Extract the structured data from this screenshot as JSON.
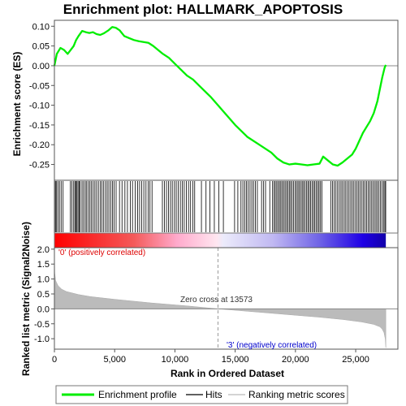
{
  "title": "Enrichment plot: HALLMARK_APOPTOSIS",
  "es_panel": {
    "ylabel": "Enrichment score (ES)",
    "ylim": [
      -0.29,
      0.115
    ],
    "ticks": [
      0.1,
      0.05,
      0.0,
      -0.05,
      -0.1,
      -0.15,
      -0.2,
      -0.25
    ],
    "tick_labels": [
      "0.10",
      "0.05",
      "0.00",
      "-0.05",
      "-0.10",
      "-0.15",
      "-0.20",
      "-0.25"
    ]
  },
  "metric_panel": {
    "ylabel": "Ranked list metric (Signal2Noise)",
    "ylim": [
      -1.35,
      2.05
    ],
    "ticks": [
      2.0,
      1.5,
      1.0,
      0.5,
      0.0,
      -0.5,
      -1.0
    ],
    "tick_labels": [
      "2.0",
      "1.5",
      "1.0",
      "0.5",
      "0.0",
      "-0.5",
      "-1.0"
    ],
    "pos_label": "'0' (positively correlated)",
    "neg_label": "'3' (negatively correlated)",
    "zero_cross_label": "Zero cross at 13573",
    "zero_cross": 13573
  },
  "x_axis": {
    "xlabel": "Rank in Ordered Dataset",
    "xlim": [
      0,
      28500
    ],
    "ticks": [
      0,
      5000,
      10000,
      15000,
      20000,
      25000
    ],
    "tick_labels": [
      "0",
      "5,000",
      "10,000",
      "15,000",
      "20,000",
      "25,000"
    ]
  },
  "legend": {
    "items": [
      {
        "label": "Enrichment profile",
        "color": "#00ee00"
      },
      {
        "label": "Hits",
        "color": "#000000"
      },
      {
        "label": "Ranking metric scores",
        "color": "#bbbbbb"
      }
    ]
  },
  "chart_data": {
    "type": "line",
    "n_genes": 27500,
    "series": [
      {
        "name": "Enrichment profile",
        "color": "#00ee00",
        "x": [
          0,
          200,
          500,
          800,
          1100,
          1400,
          1600,
          1800,
          2000,
          2300,
          2600,
          2900,
          3200,
          3500,
          3800,
          4100,
          4500,
          4800,
          5100,
          5400,
          5800,
          6200,
          6600,
          7000,
          7400,
          7800,
          8200,
          8600,
          9000,
          9500,
          10000,
          10500,
          11000,
          11500,
          12000,
          13000,
          14000,
          15000,
          16000,
          17000,
          18000,
          18500,
          19000,
          19500,
          20000,
          20500,
          21000,
          21500,
          22000,
          22300,
          22700,
          23100,
          23500,
          23900,
          24300,
          24700,
          25000,
          25300,
          25600,
          25900,
          26200,
          26500,
          26800,
          27000,
          27200,
          27400,
          27500
        ],
        "values": [
          0.0,
          0.03,
          0.045,
          0.04,
          0.03,
          0.042,
          0.05,
          0.065,
          0.075,
          0.088,
          0.085,
          0.083,
          0.085,
          0.08,
          0.078,
          0.082,
          0.09,
          0.098,
          0.096,
          0.09,
          0.075,
          0.07,
          0.065,
          0.062,
          0.06,
          0.058,
          0.05,
          0.04,
          0.03,
          0.02,
          0.005,
          -0.01,
          -0.025,
          -0.035,
          -0.05,
          -0.08,
          -0.115,
          -0.15,
          -0.18,
          -0.2,
          -0.22,
          -0.235,
          -0.245,
          -0.25,
          -0.248,
          -0.25,
          -0.252,
          -0.25,
          -0.248,
          -0.23,
          -0.24,
          -0.25,
          -0.253,
          -0.245,
          -0.235,
          -0.225,
          -0.21,
          -0.19,
          -0.17,
          -0.155,
          -0.14,
          -0.12,
          -0.09,
          -0.06,
          -0.03,
          -0.005,
          0.002
        ]
      },
      {
        "name": "Ranking metric scores",
        "color": "#bbbbbb",
        "x": [
          0,
          30,
          100,
          300,
          600,
          1000,
          2000,
          3000,
          5000,
          8000,
          11000,
          13573,
          16000,
          19000,
          22000,
          24000,
          25500,
          26500,
          27000,
          27200,
          27350,
          27450,
          27500
        ],
        "values": [
          2.0,
          1.2,
          0.95,
          0.78,
          0.66,
          0.58,
          0.48,
          0.41,
          0.32,
          0.2,
          0.1,
          0.0,
          -0.08,
          -0.18,
          -0.28,
          -0.36,
          -0.44,
          -0.52,
          -0.6,
          -0.68,
          -0.8,
          -1.0,
          -1.3
        ]
      }
    ],
    "hits": [
      20,
      90,
      180,
      290,
      420,
      560,
      720,
      1330,
      1460,
      1600,
      1700,
      1790,
      1870,
      1960,
      2050,
      2140,
      2290,
      2420,
      2560,
      2680,
      2820,
      2950,
      3080,
      3220,
      3360,
      3500,
      3650,
      3800,
      3940,
      4090,
      4240,
      4380,
      4520,
      4670,
      4820,
      4950,
      5120,
      5400,
      5610,
      5850,
      6060,
      6300,
      6480,
      6700,
      6900,
      7070,
      7250,
      7420,
      7600,
      7790,
      7930,
      8100,
      8960,
      9130,
      9300,
      9460,
      9630,
      9780,
      9960,
      10110,
      10280,
      10450,
      10610,
      10770,
      10950,
      11130,
      11300,
      11480,
      11640,
      12200,
      12580,
      12900,
      13270,
      13650,
      14020,
      14950,
      15220,
      15480,
      15640,
      15790,
      15930,
      16080,
      16230,
      16380,
      16520,
      16680,
      16840,
      17190,
      17360,
      17520,
      17870,
      18100,
      18220,
      18330,
      18450,
      18560,
      18680,
      18790,
      18910,
      19020,
      19140,
      19260,
      19370,
      19490,
      19600,
      19720,
      19850,
      19970,
      20090,
      20210,
      20320,
      20440,
      20560,
      20670,
      20790,
      20910,
      21030,
      21140,
      21260,
      21380,
      21500,
      21610,
      21730,
      21850,
      21960,
      22080,
      22190,
      22930,
      23080,
      23220,
      23360,
      23500,
      23640,
      23780,
      23910,
      24050,
      24180,
      24320,
      24450,
      24590,
      24720,
      24850,
      24990,
      25120,
      25250,
      25380,
      25520,
      25650,
      25780,
      25900,
      26030,
      26160,
      26290,
      26420,
      26550,
      26680,
      26800,
      26930,
      27060,
      27190,
      27310,
      27420,
      27490
    ]
  }
}
